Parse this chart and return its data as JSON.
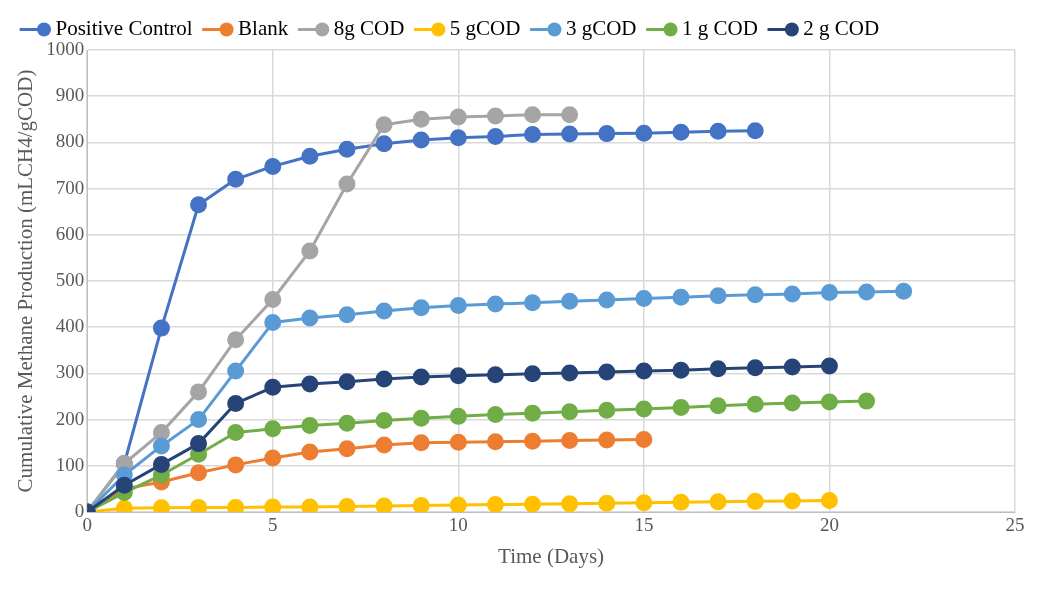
{
  "chart_data": {
    "type": "line",
    "xlabel": "Time (Days)",
    "ylabel": "Cumulative Methane Production (mLCH4/gCOD)",
    "xlim": [
      0,
      25
    ],
    "xticks": [
      0,
      5,
      10,
      15,
      20,
      25
    ],
    "ylim": [
      0,
      1000
    ],
    "yticks": [
      0,
      100,
      200,
      300,
      400,
      500,
      600,
      700,
      800,
      900,
      1000
    ],
    "grid": true,
    "legend": "top",
    "marker": "circle",
    "line_style": "solid",
    "series": [
      {
        "name": "Positive Control",
        "color": "#4472c4",
        "x": [
          0,
          1,
          2,
          3,
          4,
          5,
          6,
          7,
          8,
          9,
          10,
          11,
          12,
          13,
          14,
          15,
          16,
          17,
          18
        ],
        "values": [
          0,
          105,
          398,
          665,
          720,
          748,
          770,
          785,
          797,
          805,
          810,
          813,
          817,
          818,
          819,
          820,
          822,
          824,
          825
        ]
      },
      {
        "name": "Blank",
        "color": "#ed7d31",
        "x": [
          0,
          1,
          2,
          3,
          4,
          5,
          6,
          7,
          8,
          9,
          10,
          11,
          12,
          13,
          14,
          15
        ],
        "values": [
          0,
          50,
          65,
          85,
          102,
          117,
          130,
          137,
          145,
          150,
          151,
          152,
          153,
          155,
          156,
          157
        ]
      },
      {
        "name": "8g COD",
        "color": "#a5a5a5",
        "x": [
          0,
          1,
          2,
          3,
          4,
          5,
          6,
          7,
          8,
          9,
          10,
          11,
          12,
          13
        ],
        "values": [
          0,
          105,
          172,
          260,
          373,
          460,
          565,
          710,
          838,
          850,
          855,
          857,
          860,
          860
        ]
      },
      {
        "name": "5 gCOD",
        "color": "#ffc000",
        "x": [
          0,
          1,
          2,
          3,
          4,
          5,
          6,
          7,
          8,
          9,
          10,
          11,
          12,
          13,
          14,
          15,
          16,
          17,
          18,
          19,
          20
        ],
        "values": [
          0,
          8,
          9,
          10,
          10,
          11,
          11,
          12,
          13,
          14,
          15,
          16,
          17,
          18,
          19,
          20,
          21,
          22,
          23,
          24,
          25
        ]
      },
      {
        "name": "3 gCOD",
        "color": "#5b9bd5",
        "x": [
          0,
          1,
          2,
          3,
          4,
          5,
          6,
          7,
          8,
          9,
          10,
          11,
          12,
          13,
          14,
          15,
          16,
          17,
          18,
          19,
          20,
          21,
          22
        ],
        "values": [
          0,
          80,
          143,
          200,
          305,
          410,
          420,
          427,
          435,
          442,
          447,
          450,
          453,
          456,
          459,
          462,
          465,
          468,
          470,
          472,
          475,
          476,
          478
        ]
      },
      {
        "name": "1 g COD",
        "color": "#70ad47",
        "x": [
          0,
          1,
          2,
          3,
          4,
          5,
          6,
          7,
          8,
          9,
          10,
          11,
          12,
          13,
          14,
          15,
          16,
          17,
          18,
          19,
          20,
          21
        ],
        "values": [
          0,
          42,
          80,
          125,
          172,
          180,
          187,
          192,
          198,
          203,
          207,
          211,
          214,
          217,
          220,
          223,
          226,
          230,
          233,
          236,
          238,
          240
        ]
      },
      {
        "name": "2 g COD",
        "color": "#264478",
        "x": [
          0,
          1,
          2,
          3,
          4,
          5,
          6,
          7,
          8,
          9,
          10,
          11,
          12,
          13,
          14,
          15,
          16,
          17,
          18,
          19,
          20
        ],
        "values": [
          0,
          58,
          103,
          148,
          235,
          270,
          277,
          282,
          288,
          292,
          295,
          297,
          299,
          301,
          303,
          305,
          307,
          310,
          312,
          314,
          316
        ]
      }
    ]
  }
}
